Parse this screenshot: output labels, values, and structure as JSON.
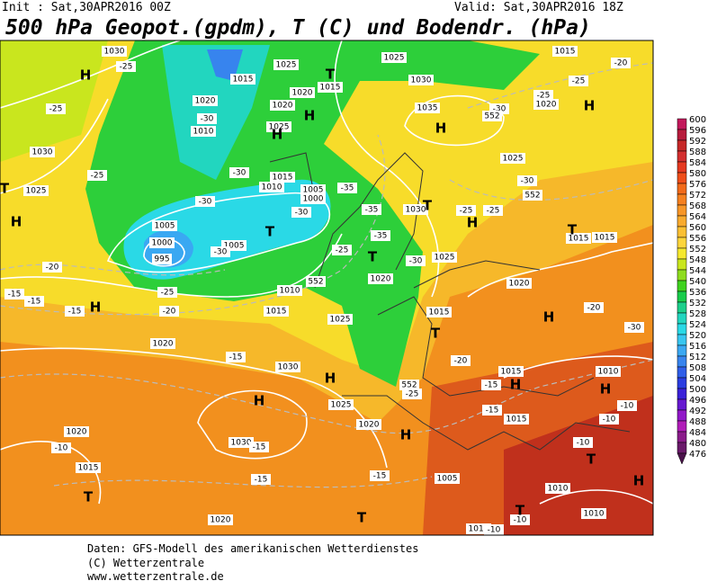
{
  "header": {
    "init": "Init : Sat,30APR2016 00Z",
    "valid": "Valid: Sat,30APR2016 18Z",
    "title": "500 hPa Geopot.(gpdm), T (C) und Bodendr. (hPa)"
  },
  "legend": {
    "ticks": [
      600,
      596,
      592,
      588,
      584,
      580,
      576,
      572,
      568,
      564,
      560,
      556,
      552,
      548,
      544,
      540,
      536,
      532,
      528,
      524,
      520,
      516,
      512,
      508,
      504,
      500,
      496,
      492,
      488,
      484,
      480,
      476
    ],
    "colors": [
      "#c2185b",
      "#b71c3c",
      "#c62828",
      "#d32f2f",
      "#e53920",
      "#ef4e1a",
      "#f26a1a",
      "#f5801f",
      "#f79627",
      "#f9ab2e",
      "#fbc034",
      "#fdd53b",
      "#f5e82e",
      "#c9e61e",
      "#8edc1e",
      "#3fd21f",
      "#18cc4b",
      "#1ccf8a",
      "#22d6bf",
      "#2ad9e6",
      "#38c6f0",
      "#3aa8f2",
      "#3784ee",
      "#2f5ee8",
      "#2a3de0",
      "#3a22d8",
      "#6619d0",
      "#9118c8",
      "#b01cb8",
      "#8a1c8a",
      "#6a1a6a",
      "#4a124a"
    ]
  },
  "map": {
    "isobar_labels": [
      "1030",
      "1025",
      "1015",
      "1020",
      "1010",
      "1020",
      "1015",
      "1020",
      "1025",
      "1015",
      "1010",
      "1005",
      "1000",
      "1005",
      "1000",
      "995",
      "1005",
      "1010",
      "1015",
      "1020",
      "1025",
      "1030",
      "1025",
      "1020",
      "1030",
      "1020",
      "1015",
      "1020",
      "1005",
      "1010",
      "1010",
      "1010",
      "1015",
      "1015",
      "1010",
      "1015",
      "1020",
      "1025",
      "1030",
      "1020",
      "1015",
      "1015",
      "1025",
      "1035",
      "1030",
      "1025",
      "1015",
      "1020",
      "1025",
      "1030"
    ],
    "temperature_labels": [
      "-25",
      "-25",
      "-30",
      "-30",
      "-30",
      "-25",
      "-20",
      "-15",
      "-15",
      "-15",
      "-20",
      "-25",
      "-30",
      "-30",
      "-35",
      "-35",
      "-35",
      "-25",
      "-30",
      "-15",
      "-15",
      "-15",
      "-10",
      "-15",
      "-10",
      "-10",
      "-10",
      "-10",
      "-10",
      "-15",
      "-15",
      "-20",
      "-20",
      "-25",
      "-25",
      "-30",
      "-30",
      "-25",
      "-25",
      "-20",
      "-30",
      "-25"
    ],
    "contour_552_labels": [
      "552",
      "552",
      "552",
      "552"
    ],
    "pressure_centers": [
      "H",
      "H",
      "H",
      "H",
      "H",
      "H",
      "H",
      "H",
      "H",
      "H",
      "H",
      "H",
      "H",
      "H",
      "H",
      "T",
      "T",
      "T",
      "T",
      "T",
      "T",
      "T",
      "T",
      "T",
      "T",
      "T"
    ]
  },
  "footer": {
    "line1": "Daten: GFS-Modell des amerikanischen Wetterdienstes",
    "line2": "(C) Wetterzentrale",
    "line3": "www.wetterzentrale.de"
  }
}
